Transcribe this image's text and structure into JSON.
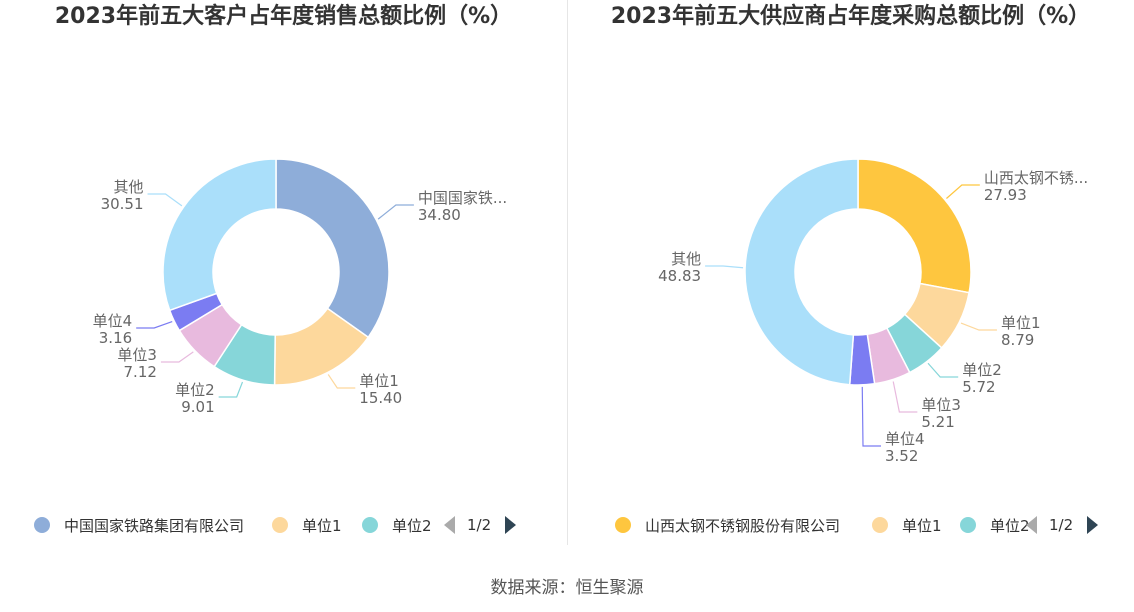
{
  "chart_data": [
    {
      "type": "donut",
      "title": "2023年前五大客户占年度销售总额比例（%）",
      "unit": "%",
      "slices": [
        {
          "label": "中国国家铁...",
          "value": 34.8,
          "color": "#8eadd9"
        },
        {
          "label": "单位1",
          "value": 15.4,
          "color": "#fdd89c"
        },
        {
          "label": "单位2",
          "value": 9.01,
          "color": "#86d6d9"
        },
        {
          "label": "单位3",
          "value": 7.12,
          "color": "#e8bade"
        },
        {
          "label": "单位4",
          "value": 3.16,
          "color": "#7b7cf2"
        },
        {
          "label": "其他",
          "value": 30.51,
          "color": "#aadffa"
        }
      ],
      "legend": {
        "items": [
          {
            "label": "中国国家铁路集团有限公司",
            "color": "#8eadd9"
          },
          {
            "label": "单位1",
            "color": "#fdd89c"
          },
          {
            "label": "单位2",
            "color": "#86d6d9"
          }
        ],
        "page": "1/2"
      }
    },
    {
      "type": "donut",
      "title": "2023年前五大供应商占年度采购总额比例（%）",
      "unit": "%",
      "slices": [
        {
          "label": "山西太钢不锈...",
          "value": 27.93,
          "color": "#fec63f"
        },
        {
          "label": "单位1",
          "value": 8.79,
          "color": "#fdd89c"
        },
        {
          "label": "单位2",
          "value": 5.72,
          "color": "#86d6d9"
        },
        {
          "label": "单位3",
          "value": 5.21,
          "color": "#e8bade"
        },
        {
          "label": "单位4",
          "value": 3.52,
          "color": "#7b7cf2"
        },
        {
          "label": "其他",
          "value": 48.83,
          "color": "#aadffa"
        }
      ],
      "legend": {
        "items": [
          {
            "label": "山西太钢不锈钢股份有限公司",
            "color": "#fec63f"
          },
          {
            "label": "单位1",
            "color": "#fdd89c"
          },
          {
            "label": "单位2",
            "color": "#86d6d9"
          }
        ],
        "page": "1/2"
      }
    }
  ],
  "source": "数据来源：恒生聚源"
}
